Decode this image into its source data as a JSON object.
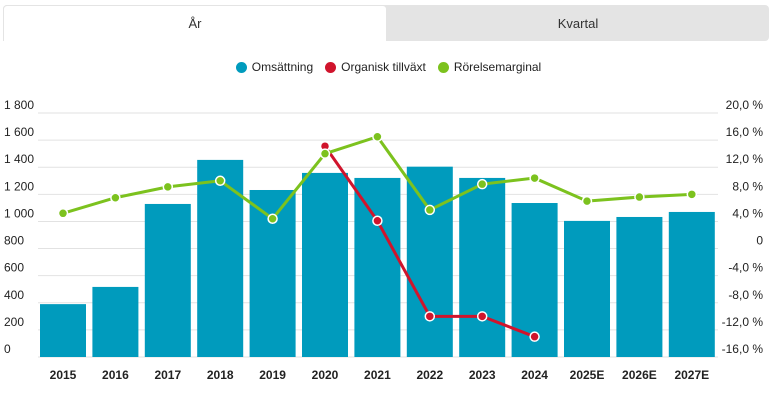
{
  "tabs": [
    {
      "label": "År",
      "active": true
    },
    {
      "label": "Kvartal",
      "active": false
    }
  ],
  "chart_data": {
    "type": "bar",
    "categories": [
      "2015",
      "2016",
      "2017",
      "2018",
      "2019",
      "2020",
      "2021",
      "2022",
      "2023",
      "2024",
      "2025E",
      "2026E",
      "2027E"
    ],
    "series": [
      {
        "name": "Omsättning",
        "type": "bar",
        "axis": "left",
        "color": "#009bbd",
        "values": [
          390,
          517,
          1129,
          1454,
          1232,
          1358,
          1321,
          1404,
          1321,
          1136,
          1004,
          1033,
          1070
        ]
      },
      {
        "name": "Organisk tillväxt",
        "type": "line",
        "axis": "right",
        "color": "#d0142c",
        "values": [
          null,
          null,
          null,
          null,
          null,
          15.1,
          4.1,
          -10.0,
          -10.0,
          -13.0,
          null,
          null,
          null
        ]
      },
      {
        "name": "Rörelsemarginal",
        "type": "line",
        "axis": "right",
        "color": "#7cc21e",
        "values": [
          5.2,
          7.5,
          9.1,
          10.0,
          4.4,
          14.0,
          16.5,
          5.7,
          9.5,
          10.4,
          7.0,
          7.6,
          8.0
        ]
      }
    ],
    "left_axis": {
      "ylim": [
        0,
        1800
      ],
      "ticks": [
        "0",
        "200",
        "400",
        "600",
        "800",
        "1 000",
        "1 200",
        "1 400",
        "1 600",
        "1 800"
      ]
    },
    "right_axis": {
      "ylim": [
        -16,
        20
      ],
      "ticks": [
        "-16,0 %",
        "-12,0 %",
        "-8,0 %",
        "-4,0 %",
        "0",
        "4,0 %",
        "8,0 %",
        "12,0 %",
        "16,0 %",
        "20,0 %"
      ]
    },
    "legend": "top-center",
    "grid": true
  }
}
